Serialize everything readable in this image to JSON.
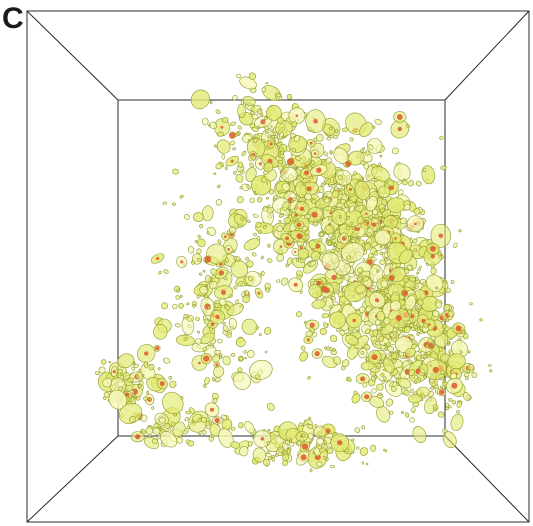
{
  "figure": {
    "panel_label": "C"
  },
  "colors": {
    "background": "#ffffff",
    "box_edge": "#2a2a2a",
    "blob_fill": "#e3ea74",
    "blob_outline": "#8f9a2c",
    "blob_highlight": "#f6f8b8",
    "core_fill": "#e0572a"
  }
}
